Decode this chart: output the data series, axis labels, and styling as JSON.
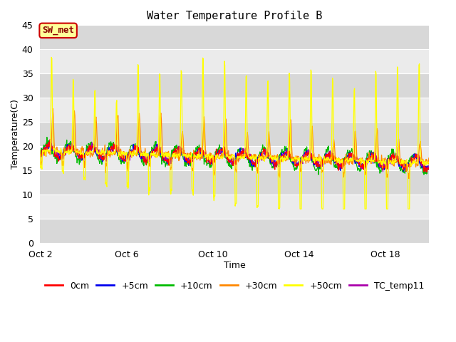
{
  "title": "Water Temperature Profile B",
  "xlabel": "Time",
  "ylabel": "Temperature(C)",
  "ylim": [
    0,
    45
  ],
  "yticks": [
    0,
    5,
    10,
    15,
    20,
    25,
    30,
    35,
    40,
    45
  ],
  "xtick_labels": [
    "Oct 2",
    "Oct 6",
    "Oct 10",
    "Oct 14",
    "Oct 18"
  ],
  "xtick_positions": [
    0,
    4,
    8,
    12,
    16
  ],
  "annotation_text": "SW_met",
  "annotation_bg": "#FFFF99",
  "annotation_border": "#CC0000",
  "annotation_text_color": "#8B0000",
  "series_colors": {
    "0cm": "#FF0000",
    "+5cm": "#0000EE",
    "+10cm": "#00BB00",
    "+30cm": "#FF8800",
    "+50cm": "#FFFF00",
    "TC_temp11": "#AA00AA"
  },
  "background_color": "#FFFFFF",
  "plot_bg_light": "#EBEBEB",
  "plot_bg_dark": "#D8D8D8",
  "n_days": 18,
  "samples_per_day": 48,
  "grid_color": "#FFFFFF",
  "figsize": [
    6.4,
    4.8
  ],
  "dpi": 100
}
